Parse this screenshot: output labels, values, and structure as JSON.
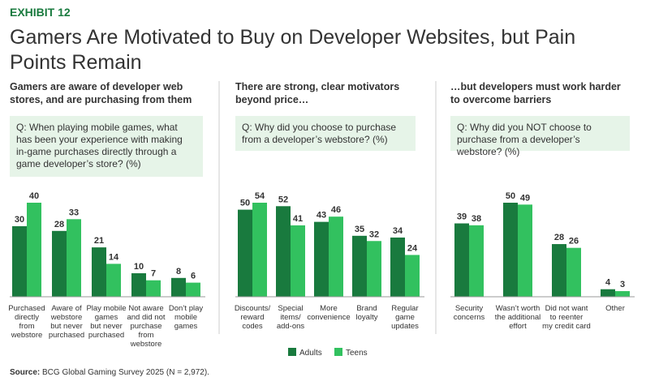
{
  "exhibit": "EXHIBIT 12",
  "title": "Gamers Are Motivated to Buy on Developer Websites, but Pain\nPoints Remain",
  "source_label": "Source:",
  "source_text": "BCG Global Gaming Survey 2025 (N = 2,972).",
  "chart_data": [
    {
      "type": "bar",
      "title": "Gamers are aware of developer web\nstores, and are purchasing from them",
      "question": "Q: When playing mobile games, what\nhas been your experience with making\nin-game purchases directly through a\ngame developer’s store? (%)",
      "categories": [
        "Purchased\ndirectly\nfrom\nwebstore",
        "Aware of\nwebstore\nbut never\npurchased",
        "Play mobile\ngames\nbut never\npurchased",
        "Not aware\nand did not\npurchase\nfrom\nwebstore",
        "Don’t play\nmobile\ngames"
      ],
      "series": [
        {
          "name": "Adults",
          "color": "#197a3e",
          "values": [
            30,
            28,
            21,
            10,
            8
          ]
        },
        {
          "name": "Teens",
          "color": "#32c15f",
          "values": [
            40,
            33,
            14,
            7,
            6
          ]
        }
      ]
    },
    {
      "type": "bar",
      "title": "There are strong, clear motivators\nbeyond price…",
      "question": "Q: Why did you choose to purchase\nfrom a developer’s webstore? (%)",
      "categories": [
        "Discounts/\nreward\ncodes",
        "Special\nitems/\nadd-ons",
        "More\nconvenience",
        "Brand\nloyalty",
        "Regular\ngame\nupdates"
      ],
      "series": [
        {
          "name": "Adults",
          "color": "#197a3e",
          "values": [
            50,
            52,
            43,
            35,
            34
          ]
        },
        {
          "name": "Teens",
          "color": "#32c15f",
          "values": [
            54,
            41,
            46,
            32,
            24
          ]
        }
      ]
    },
    {
      "type": "bar",
      "title": "…but developers must work harder\nto overcome barriers",
      "question": "Q: Why did you NOT choose to\npurchase from a developer’s\nwebstore? (%)",
      "categories": [
        "Security\nconcerns",
        "Wasn’t worth\nthe additional\neffort",
        "Did not want\nto reenter\nmy credit card",
        "Other"
      ],
      "series": [
        {
          "name": "Adults",
          "color": "#197a3e",
          "values": [
            39,
            50,
            28,
            4
          ]
        },
        {
          "name": "Teens",
          "color": "#32c15f",
          "values": [
            38,
            49,
            26,
            3
          ]
        }
      ]
    }
  ]
}
